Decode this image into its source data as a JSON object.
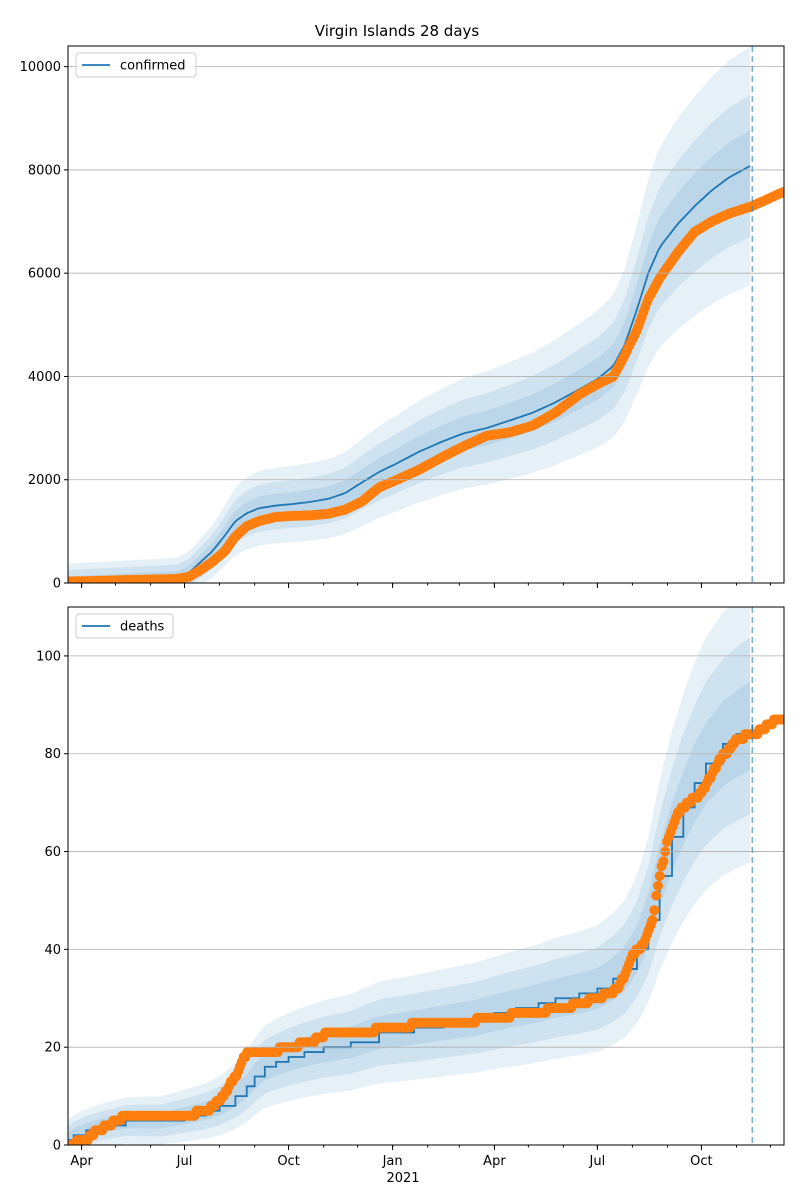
{
  "chart_data": [
    {
      "type": "line",
      "title": "Virgin Islands 28 days",
      "xlabel": "",
      "ylabel": "",
      "x_range": [
        "2020-03-20",
        "2021-12-13"
      ],
      "xlim": [
        0,
        633
      ],
      "ylim": [
        0,
        10400
      ],
      "yticks": [
        0,
        2000,
        4000,
        6000,
        8000,
        10000
      ],
      "grid": "horizontal",
      "legend_position": "top-left",
      "forecast_start": "2021-11-15",
      "colors": {
        "forecast": "#1f77b4",
        "observed": "#ff7f0e",
        "band": "#1f77b4"
      },
      "series": [
        {
          "name": "confirmed",
          "style": "line",
          "x": [
            "2020-03-20",
            "2020-04-15",
            "2020-05-15",
            "2020-06-10",
            "2020-06-25",
            "2020-07-05",
            "2020-07-15",
            "2020-07-25",
            "2020-08-05",
            "2020-08-15",
            "2020-08-25",
            "2020-09-05",
            "2020-09-20",
            "2020-10-05",
            "2020-10-20",
            "2020-11-05",
            "2020-11-20",
            "2020-12-05",
            "2020-12-20",
            "2021-01-05",
            "2021-01-25",
            "2021-02-15",
            "2021-03-05",
            "2021-03-25",
            "2021-04-15",
            "2021-05-05",
            "2021-05-25",
            "2021-06-15",
            "2021-07-01",
            "2021-07-15",
            "2021-07-25",
            "2021-08-05",
            "2021-08-15",
            "2021-08-25",
            "2021-09-10",
            "2021-09-25",
            "2021-10-10",
            "2021-10-25",
            "2021-11-15"
          ],
          "y": [
            0,
            30,
            60,
            80,
            100,
            200,
            400,
            600,
            900,
            1200,
            1350,
            1450,
            1500,
            1530,
            1570,
            1630,
            1740,
            1950,
            2150,
            2320,
            2550,
            2750,
            2900,
            3000,
            3150,
            3300,
            3500,
            3750,
            3950,
            4200,
            4600,
            5300,
            6000,
            6500,
            6950,
            7300,
            7600,
            7850,
            8100
          ]
        },
        {
          "name": "",
          "style": "markers",
          "x": [
            "2020-03-20",
            "2020-04-15",
            "2020-05-15",
            "2020-06-10",
            "2020-06-25",
            "2020-07-05",
            "2020-07-15",
            "2020-07-25",
            "2020-08-05",
            "2020-08-15",
            "2020-08-25",
            "2020-09-05",
            "2020-09-20",
            "2020-10-05",
            "2020-10-20",
            "2020-11-05",
            "2020-11-20",
            "2020-12-05",
            "2020-12-20",
            "2021-01-05",
            "2021-01-25",
            "2021-02-15",
            "2021-03-05",
            "2021-03-25",
            "2021-04-15",
            "2021-05-05",
            "2021-05-25",
            "2021-06-15",
            "2021-07-01",
            "2021-07-15",
            "2021-07-25",
            "2021-08-05",
            "2021-08-15",
            "2021-08-25",
            "2021-09-10",
            "2021-09-25",
            "2021-10-10",
            "2021-10-25",
            "2021-11-15",
            "2021-11-30",
            "2021-12-13"
          ],
          "y": [
            30,
            40,
            60,
            70,
            80,
            120,
            250,
            400,
            600,
            900,
            1100,
            1200,
            1280,
            1300,
            1310,
            1340,
            1420,
            1580,
            1850,
            2000,
            2200,
            2450,
            2650,
            2850,
            2920,
            3050,
            3300,
            3650,
            3850,
            4000,
            4400,
            4900,
            5500,
            5900,
            6400,
            6800,
            7000,
            7150,
            7300,
            7450,
            7580
          ]
        }
      ],
      "bands_half_width_fraction": [
        0.07,
        0.14,
        0.24
      ]
    },
    {
      "type": "line",
      "title": "",
      "xlabel": "2021",
      "ylabel": "",
      "x_range": [
        "2020-03-20",
        "2021-12-13"
      ],
      "xlim": [
        0,
        633
      ],
      "ylim": [
        0,
        110
      ],
      "yticks": [
        0,
        20,
        40,
        60,
        80,
        100
      ],
      "xticks": [
        "Apr",
        "Jul",
        "Oct",
        "Jan",
        "Apr",
        "Jul",
        "Oct"
      ],
      "xtick_dates": [
        "2020-04-01",
        "2020-07-01",
        "2020-10-01",
        "2021-01-01",
        "2021-04-01",
        "2021-07-01",
        "2021-10-01"
      ],
      "grid": "horizontal",
      "legend_position": "top-left",
      "forecast_start": "2021-11-15",
      "colors": {
        "forecast": "#1f77b4",
        "observed": "#ff7f0e",
        "band": "#1f77b4"
      },
      "series": [
        {
          "name": "deaths",
          "style": "step",
          "x": [
            "2020-03-20",
            "2020-03-25",
            "2020-04-05",
            "2020-04-20",
            "2020-05-10",
            "2020-06-10",
            "2020-07-01",
            "2020-07-20",
            "2020-08-01",
            "2020-08-15",
            "2020-08-25",
            "2020-09-01",
            "2020-09-10",
            "2020-09-20",
            "2020-10-01",
            "2020-10-15",
            "2020-11-01",
            "2020-11-25",
            "2020-12-20",
            "2021-01-20",
            "2021-02-15",
            "2021-03-15",
            "2021-04-01",
            "2021-04-20",
            "2021-05-10",
            "2021-05-25",
            "2021-06-15",
            "2021-07-01",
            "2021-07-15",
            "2021-07-25",
            "2021-08-05",
            "2021-08-15",
            "2021-08-25",
            "2021-09-05",
            "2021-09-15",
            "2021-09-25",
            "2021-10-05",
            "2021-10-20",
            "2021-11-01",
            "2021-11-15"
          ],
          "y": [
            1,
            2,
            3,
            4,
            5,
            5,
            6,
            7,
            8,
            10,
            12,
            14,
            16,
            17,
            18,
            19,
            20,
            21,
            23,
            24,
            25,
            26,
            27,
            28,
            29,
            30,
            31,
            32,
            34,
            36,
            40,
            46,
            55,
            63,
            69,
            74,
            78,
            82,
            84,
            86
          ]
        },
        {
          "name": "",
          "style": "markers",
          "x": [
            "2020-03-20",
            "2020-04-05",
            "2020-04-15",
            "2020-04-25",
            "2020-05-10",
            "2020-06-01",
            "2020-07-01",
            "2020-07-20",
            "2020-08-01",
            "2020-08-15",
            "2020-08-25",
            "2020-09-05",
            "2020-09-15",
            "2020-10-01",
            "2020-10-20",
            "2020-11-05",
            "2020-12-01",
            "2021-01-01",
            "2021-02-01",
            "2021-03-01",
            "2021-04-01",
            "2021-05-01",
            "2021-06-01",
            "2021-07-01",
            "2021-07-20",
            "2021-08-01",
            "2021-08-10",
            "2021-08-18",
            "2021-08-25",
            "2021-09-01",
            "2021-09-10",
            "2021-09-20",
            "2021-10-01",
            "2021-10-15",
            "2021-11-01",
            "2021-11-15",
            "2021-11-25",
            "2021-12-05",
            "2021-12-13"
          ],
          "y": [
            0,
            1,
            3,
            4,
            6,
            6,
            6,
            7,
            9,
            14,
            19,
            19,
            19,
            20,
            21,
            23,
            23,
            24,
            25,
            25,
            26,
            27,
            28,
            30,
            32,
            39,
            41,
            45,
            55,
            62,
            68,
            70,
            72,
            78,
            83,
            84,
            85,
            87,
            87
          ]
        }
      ],
      "bands_half_width_fraction": [
        0.09,
        0.18,
        0.28
      ]
    }
  ]
}
